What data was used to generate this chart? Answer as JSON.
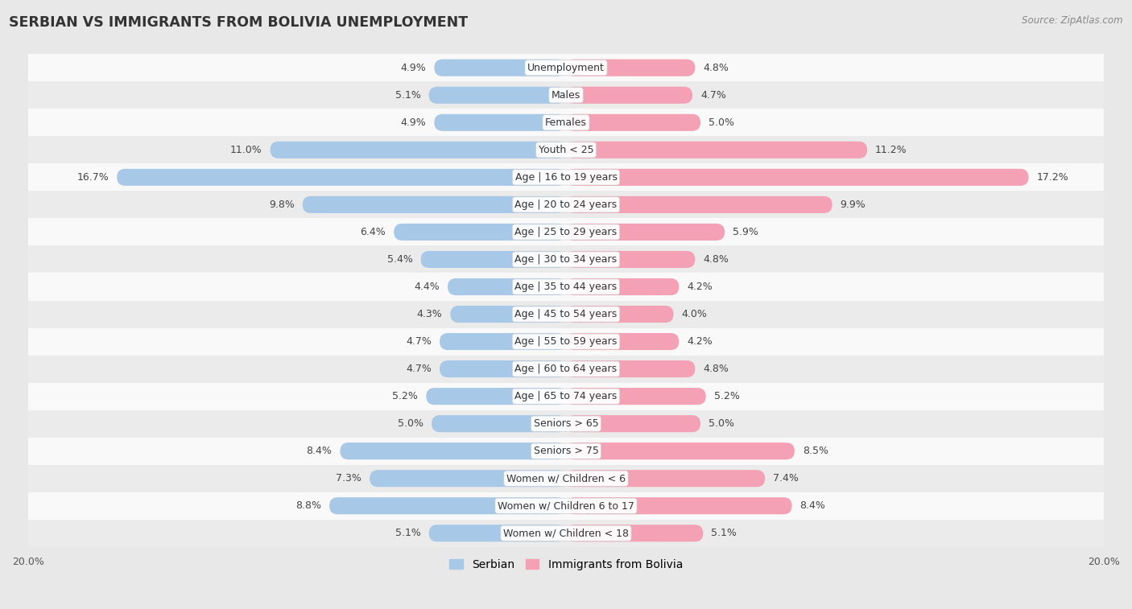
{
  "title": "SERBIAN VS IMMIGRANTS FROM BOLIVIA UNEMPLOYMENT",
  "source": "Source: ZipAtlas.com",
  "categories": [
    "Unemployment",
    "Males",
    "Females",
    "Youth < 25",
    "Age | 16 to 19 years",
    "Age | 20 to 24 years",
    "Age | 25 to 29 years",
    "Age | 30 to 34 years",
    "Age | 35 to 44 years",
    "Age | 45 to 54 years",
    "Age | 55 to 59 years",
    "Age | 60 to 64 years",
    "Age | 65 to 74 years",
    "Seniors > 65",
    "Seniors > 75",
    "Women w/ Children < 6",
    "Women w/ Children 6 to 17",
    "Women w/ Children < 18"
  ],
  "serbian": [
    4.9,
    5.1,
    4.9,
    11.0,
    16.7,
    9.8,
    6.4,
    5.4,
    4.4,
    4.3,
    4.7,
    4.7,
    5.2,
    5.0,
    8.4,
    7.3,
    8.8,
    5.1
  ],
  "bolivia": [
    4.8,
    4.7,
    5.0,
    11.2,
    17.2,
    9.9,
    5.9,
    4.8,
    4.2,
    4.0,
    4.2,
    4.8,
    5.2,
    5.0,
    8.5,
    7.4,
    8.4,
    5.1
  ],
  "serbian_color": "#A8C8E8",
  "bolivia_color": "#F4A0B5",
  "bg_color": "#e8e8e8",
  "row_light": "#f9f9f9",
  "row_dark": "#ebebeb",
  "xlim": 20.0,
  "label_fontsize": 9.0,
  "value_fontsize": 9.0,
  "title_fontsize": 12.5,
  "legend_fontsize": 10,
  "bar_height": 0.62
}
